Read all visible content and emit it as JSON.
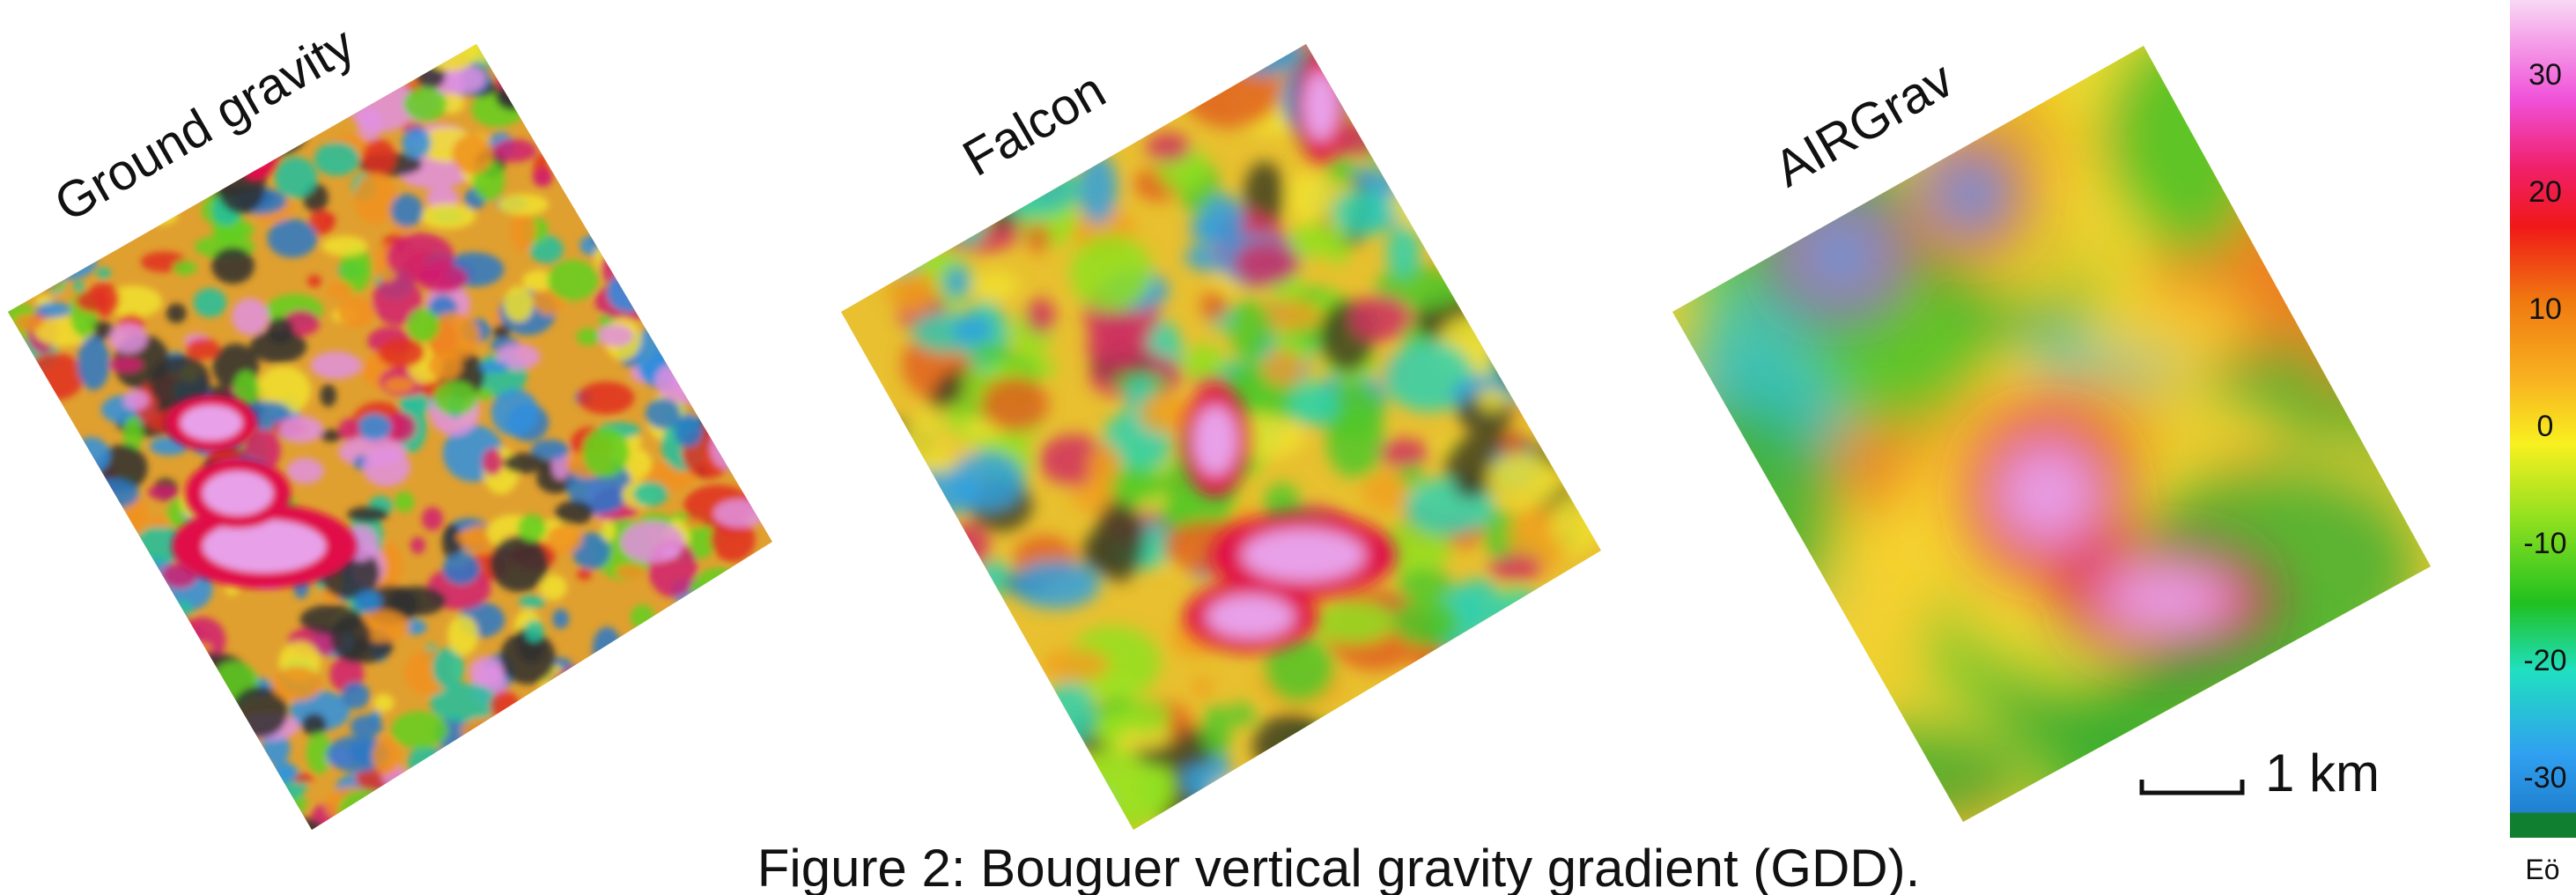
{
  "maps": [
    {
      "label": "Ground gravity"
    },
    {
      "label": "Falcon"
    },
    {
      "label": "AIRGrav"
    }
  ],
  "scale_bar": {
    "label": "1 km"
  },
  "colorbar": {
    "ticks": [
      30,
      20,
      10,
      0,
      -10,
      -20,
      -30
    ],
    "unit": "Eö"
  },
  "caption": "Figure 2: Bouguer vertical gravity gradient (GDD)."
}
